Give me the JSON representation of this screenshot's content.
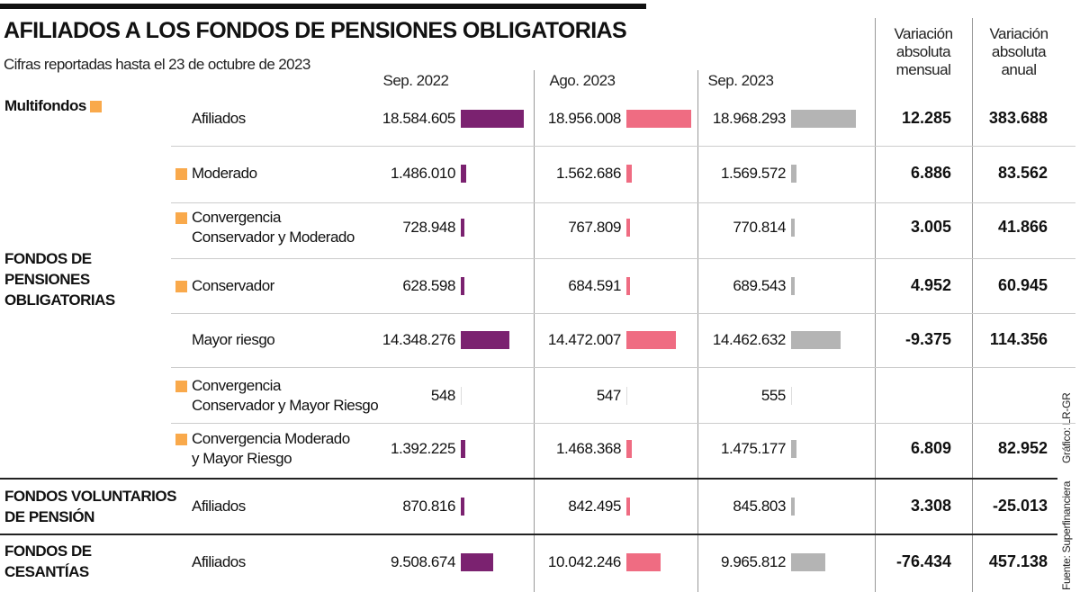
{
  "title": "AFILIADOS A LOS FONDOS DE PENSIONES OBLIGATORIAS",
  "subtitle": "Cifras reportadas hasta el 23 de octubre de 2023",
  "source": "Fuente: Superfinanciera",
  "credit": "Gráfico: LR-GR",
  "colors": {
    "sep2022": "#7b2270",
    "ago2023": "#ef6c82",
    "sep2023": "#b4b4b4",
    "marker": "#f9a94b"
  },
  "chart_data": {
    "type": "table",
    "columns": [
      "Sep. 2022",
      "Ago. 2023",
      "Sep. 2023",
      "Variación absoluta mensual",
      "Variación absoluta anual"
    ],
    "groups": [
      {
        "label": "Multifondos",
        "marker": true
      },
      {
        "label": "FONDOS DE PENSIONES OBLIGATORIAS"
      },
      {
        "label": "FONDOS VOLUNTARIOS DE PENSIÓN"
      },
      {
        "label": "FONDOS DE CESANTÍAS"
      }
    ],
    "rows": [
      {
        "label": "Afiliados",
        "marker": false,
        "values": [
          "18.584.605",
          "18.956.008",
          "18.968.293"
        ],
        "num": [
          18584605,
          18956008,
          18968293
        ],
        "mensual": "12.285",
        "anual": "383.688"
      },
      {
        "label": "Moderado",
        "marker": true,
        "values": [
          "1.486.010",
          "1.562.686",
          "1.569.572"
        ],
        "num": [
          1486010,
          1562686,
          1569572
        ],
        "mensual": "6.886",
        "anual": "83.562"
      },
      {
        "label": "Convergencia\nConservador y Moderado",
        "marker": true,
        "values": [
          "728.948",
          "767.809",
          "770.814"
        ],
        "num": [
          728948,
          767809,
          770814
        ],
        "mensual": "3.005",
        "anual": "41.866"
      },
      {
        "label": "Conservador",
        "marker": true,
        "values": [
          "628.598",
          "684.591",
          "689.543"
        ],
        "num": [
          628598,
          684591,
          689543
        ],
        "mensual": "4.952",
        "anual": "60.945"
      },
      {
        "label": "Mayor riesgo",
        "marker": false,
        "values": [
          "14.348.276",
          "14.472.007",
          "14.462.632"
        ],
        "num": [
          14348276,
          14472007,
          14462632
        ],
        "mensual": "-9.375",
        "anual": "114.356"
      },
      {
        "label": "Convergencia\nConservador y Mayor Riesgo",
        "marker": true,
        "values": [
          "548",
          "547",
          "555"
        ],
        "num": [
          548,
          547,
          555
        ],
        "mensual": "",
        "anual": ""
      },
      {
        "label": "Convergencia Moderado\ny Mayor Riesgo",
        "marker": true,
        "values": [
          "1.392.225",
          "1.468.368",
          "1.475.177"
        ],
        "num": [
          1392225,
          1468368,
          1475177
        ],
        "mensual": "6.809",
        "anual": "82.952"
      },
      {
        "label": "Afiliados",
        "marker": false,
        "values": [
          "870.816",
          "842.495",
          "845.803"
        ],
        "num": [
          870816,
          842495,
          845803
        ],
        "mensual": "3.308",
        "anual": "-25.013"
      },
      {
        "label": "Afiliados",
        "marker": false,
        "values": [
          "9.508.674",
          "10.042.246",
          "9.965.812"
        ],
        "num": [
          9508674,
          10042246,
          9965812
        ],
        "mensual": "-76.434",
        "anual": "457.138"
      }
    ]
  }
}
